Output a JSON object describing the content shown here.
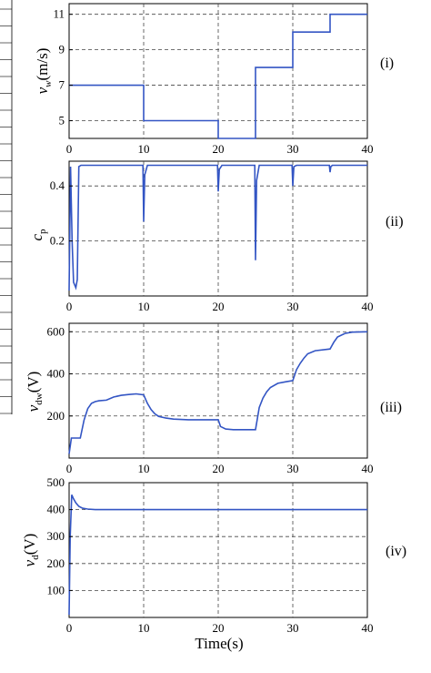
{
  "chart_data": [
    {
      "type": "line",
      "panel_label": "(i)",
      "ylabel_main": "v",
      "ylabel_sub": "w",
      "ylabel_unit": "(m/s)",
      "xlim": [
        0,
        40
      ],
      "ylim": [
        4,
        11.6
      ],
      "xticks": [
        "0",
        "10",
        "20",
        "30",
        "40"
      ],
      "yticks": [
        "5",
        "7",
        "9",
        "11"
      ],
      "ytick_values": [
        5,
        7,
        9,
        11
      ],
      "grid": true,
      "color": "#3355c4",
      "series": [
        {
          "x": [
            0,
            10,
            10,
            20,
            20,
            25,
            25,
            30,
            30,
            35,
            35,
            40
          ],
          "y": [
            7,
            7,
            5,
            5,
            4,
            4,
            8,
            8,
            10,
            10,
            11,
            11
          ]
        }
      ]
    },
    {
      "type": "line",
      "panel_label": "(ii)",
      "ylabel_main": "c",
      "ylabel_sub": "p",
      "xlim": [
        0,
        40
      ],
      "ylim": [
        0,
        0.49
      ],
      "xticks": [
        "0",
        "10",
        "20",
        "30",
        "40"
      ],
      "yticks": [
        "0.2",
        "0.4"
      ],
      "ytick_values": [
        0.2,
        0.4
      ],
      "grid": true,
      "color": "#3355c4",
      "series": [
        {
          "x": [
            0,
            0.2,
            0.4,
            0.6,
            0.9,
            1.1,
            1.3,
            1.6,
            9.9,
            10,
            10.15,
            10.5,
            19.9,
            20,
            20.15,
            20.5,
            24.9,
            25,
            25.15,
            25.5,
            29.9,
            30,
            30.15,
            30.5,
            34.9,
            35,
            35.1,
            35.3,
            40
          ],
          "y": [
            0.02,
            0.47,
            0.2,
            0.05,
            0.03,
            0.06,
            0.47,
            0.475,
            0.475,
            0.27,
            0.44,
            0.475,
            0.475,
            0.38,
            0.46,
            0.475,
            0.475,
            0.13,
            0.42,
            0.475,
            0.475,
            0.4,
            0.47,
            0.475,
            0.475,
            0.45,
            0.47,
            0.475,
            0.475
          ]
        }
      ]
    },
    {
      "type": "line",
      "panel_label": "(iii)",
      "ylabel_main": "v",
      "ylabel_sub": "dw",
      "ylabel_unit": "(V)",
      "xlim": [
        0,
        40
      ],
      "ylim": [
        0,
        640
      ],
      "xticks": [
        "0",
        "10",
        "20",
        "30",
        "40"
      ],
      "yticks": [
        "200",
        "400",
        "600"
      ],
      "ytick_values": [
        200,
        400,
        600
      ],
      "grid": true,
      "color": "#3355c4",
      "series": [
        {
          "x": [
            0,
            0.3,
            1.5,
            2,
            2.5,
            3,
            3.5,
            4,
            5,
            6,
            7,
            8,
            9,
            10,
            10.5,
            11,
            11.5,
            12,
            13,
            14,
            16,
            18,
            20,
            20.3,
            21,
            22,
            24,
            25,
            25.5,
            26,
            26.5,
            27,
            28,
            29,
            30,
            30.5,
            31,
            31.5,
            32,
            33,
            35,
            35.5,
            36,
            37,
            38,
            40
          ],
          "y": [
            20,
            95,
            95,
            180,
            235,
            260,
            268,
            272,
            275,
            290,
            298,
            302,
            305,
            300,
            260,
            230,
            210,
            198,
            190,
            185,
            182,
            182,
            182,
            150,
            138,
            135,
            135,
            135,
            240,
            285,
            315,
            335,
            355,
            362,
            368,
            420,
            450,
            475,
            495,
            510,
            518,
            550,
            575,
            592,
            598,
            600
          ]
        }
      ]
    },
    {
      "type": "line",
      "panel_label": "(iv)",
      "ylabel_main": "v",
      "ylabel_sub": "d",
      "ylabel_unit": "(V)",
      "xlabel": "Time(s)",
      "xlim": [
        0,
        40
      ],
      "ylim": [
        0,
        500
      ],
      "xticks": [
        "0",
        "10",
        "20",
        "30",
        "40"
      ],
      "yticks": [
        "100",
        "200",
        "300",
        "400",
        "500"
      ],
      "ytick_values": [
        100,
        200,
        300,
        400,
        500
      ],
      "grid": true,
      "color": "#3355c4",
      "series": [
        {
          "x": [
            0,
            0.15,
            0.35,
            0.6,
            0.9,
            1.3,
            1.8,
            2.5,
            3.5,
            10,
            20,
            30,
            40
          ],
          "y": [
            10,
            300,
            455,
            440,
            425,
            412,
            405,
            402,
            400,
            400,
            400,
            400,
            400
          ]
        }
      ]
    }
  ]
}
